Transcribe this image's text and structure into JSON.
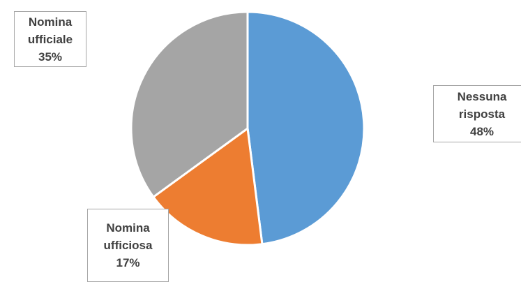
{
  "chart_data": {
    "type": "pie",
    "slices": [
      {
        "label_lines": [
          "Nessuna",
          "risposta"
        ],
        "percent_text": "48%",
        "value": 48,
        "color": "#5b9bd5"
      },
      {
        "label_lines": [
          "Nomina",
          "ufficiosa"
        ],
        "percent_text": "17%",
        "value": 17,
        "color": "#ed7d31"
      },
      {
        "label_lines": [
          "Nomina",
          "ufficiale"
        ],
        "percent_text": "35%",
        "value": 35,
        "color": "#a5a5a5"
      }
    ],
    "start_angle": "12 o'clock",
    "direction": "clockwise",
    "legend": "none"
  }
}
